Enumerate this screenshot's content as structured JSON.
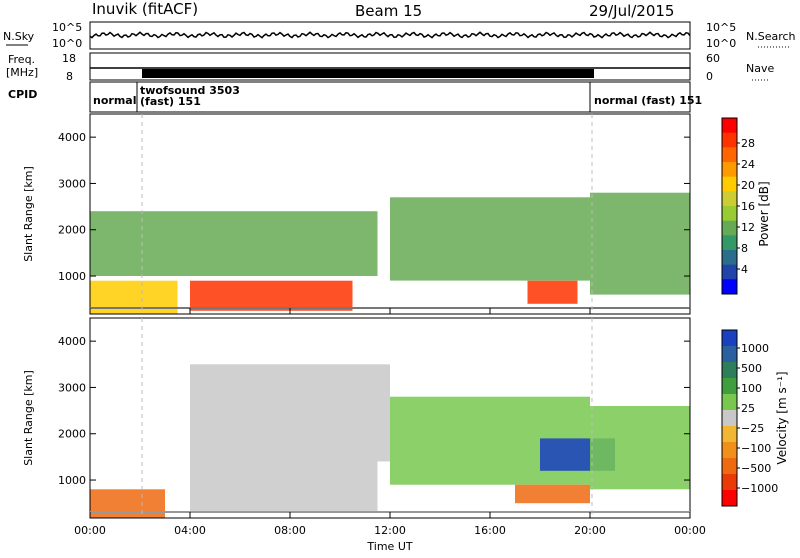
{
  "header": {
    "station": "Inuvik (fitACF)",
    "beam": "Beam 15",
    "date": "29/Jul/2015"
  },
  "noise_panel": {
    "left_label": "N.Sky",
    "left_ticks": [
      "10^5",
      "10^0"
    ],
    "right_ticks": [
      "10^5",
      "10^0"
    ],
    "right_label": "N.Search",
    "right_label_style": "dotted"
  },
  "freq_panel": {
    "left_label_line1": "Freq.",
    "left_label_line2": "[MHz]",
    "left_ticks": [
      "18",
      "8"
    ],
    "right_ticks": [
      "60",
      "0"
    ],
    "right_label": "Nave",
    "right_label_style": "dotted"
  },
  "cpid_panel": {
    "label": "CPID",
    "segments": [
      {
        "label": "normal",
        "start_hour": 0.0,
        "end_hour": 1.85
      },
      {
        "label": "twofsound 3503",
        "label2": "(fast) 151",
        "start_hour": 1.85,
        "end_hour": 20.0
      },
      {
        "label": "normal (fast) 151",
        "start_hour": 20.0,
        "end_hour": 24.0
      }
    ]
  },
  "power_panel": {
    "ylabel": "Slant Range [km]",
    "colorbar_label": "Power [dB]",
    "colorbar_ticks": [
      "28",
      "24",
      "20",
      "16",
      "12",
      "8",
      "4"
    ],
    "colorbar_colors": [
      "#ff0000",
      "#ff3300",
      "#ff6600",
      "#ff9900",
      "#ffcc00",
      "#cccc33",
      "#99cc33",
      "#66aa55",
      "#339966",
      "#2a6e8c",
      "#2244aa",
      "#0000ff"
    ]
  },
  "velocity_panel": {
    "ylabel": "Slant Range [km]",
    "colorbar_label": "Velocity [m s⁻¹]",
    "colorbar_ticks": [
      "1000",
      "500",
      "100",
      "25",
      "−25",
      "−100",
      "−500",
      "−1000"
    ],
    "colorbar_colors": [
      "#1a3fbf",
      "#2a5fa0",
      "#2e7d5b",
      "#3f9f3f",
      "#78c850",
      "#c8c8c8",
      "#f2b632",
      "#f0901a",
      "#ee6a10",
      "#ea3a08",
      "#ff0000"
    ]
  },
  "x_axis": {
    "ticks": [
      "00:00",
      "04:00",
      "08:00",
      "12:00",
      "16:00",
      "20:00",
      "00:00"
    ],
    "label": "Time UT"
  },
  "chart_data": {
    "type": "heatmap",
    "x_range_hours": [
      0,
      24
    ],
    "y_range_km": [
      180,
      4500
    ],
    "y_ticks": [
      1000,
      2000,
      3000,
      4000
    ],
    "power_regions": [
      {
        "t0": 0.0,
        "t1": 3.5,
        "r0": 180,
        "r1": 900,
        "value_db": 20
      },
      {
        "t0": 4.0,
        "t1": 10.5,
        "r0": 250,
        "r1": 900,
        "value_db": 28
      },
      {
        "t0": 0.0,
        "t1": 11.5,
        "r0": 1000,
        "r1": 2400,
        "value_db": 12
      },
      {
        "t0": 12.0,
        "t1": 20.0,
        "r0": 900,
        "r1": 2700,
        "value_db": 12
      },
      {
        "t0": 17.5,
        "t1": 19.5,
        "r0": 400,
        "r1": 900,
        "value_db": 28
      },
      {
        "t0": 20.0,
        "t1": 24.0,
        "r0": 600,
        "r1": 2800,
        "value_db": 10
      }
    ],
    "velocity_regions": [
      {
        "t0": 0.0,
        "t1": 3.0,
        "r0": 180,
        "r1": 800,
        "value_ms": -400
      },
      {
        "t0": 4.0,
        "t1": 11.5,
        "r0": 300,
        "r1": 1400,
        "value_ms": 0
      },
      {
        "t0": 4.0,
        "t1": 12.0,
        "r0": 1400,
        "r1": 3500,
        "value_ms": 0
      },
      {
        "t0": 12.0,
        "t1": 20.0,
        "r0": 900,
        "r1": 2800,
        "value_ms": 200
      },
      {
        "t0": 17.0,
        "t1": 20.0,
        "r0": 500,
        "r1": 900,
        "value_ms": -500
      },
      {
        "t0": 18.0,
        "t1": 21.0,
        "r0": 1200,
        "r1": 1900,
        "value_ms": 800
      },
      {
        "t0": 20.0,
        "t1": 24.0,
        "r0": 800,
        "r1": 2600,
        "value_ms": 100
      }
    ]
  }
}
